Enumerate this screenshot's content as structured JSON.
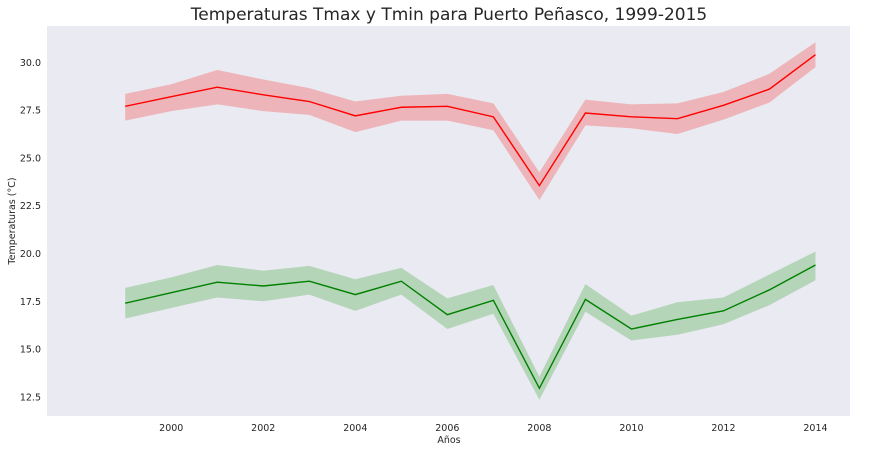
{
  "chart_data": {
    "type": "line",
    "title": "Temperaturas Tmax y Tmin para Puerto Peñasco, 1999-2015",
    "xlabel": "Años",
    "ylabel": "Temperaturas (°C)",
    "xlim": [
      1997.3,
      2014.75
    ],
    "ylim": [
      11.5,
      31.9
    ],
    "xticks": [
      2000,
      2002,
      2004,
      2006,
      2008,
      2010,
      2012,
      2014
    ],
    "yticks": [
      12.5,
      15.0,
      17.5,
      20.0,
      22.5,
      25.0,
      27.5,
      30.0
    ],
    "ytick_labels": [
      "12.5",
      "15.0",
      "17.5",
      "20.0",
      "22.5",
      "25.0",
      "27.5",
      "30.0"
    ],
    "grid": false,
    "background": "#eaeaf2",
    "x": [
      1999,
      2000,
      2001,
      2002,
      2003,
      2004,
      2005,
      2006,
      2007,
      2008,
      2009,
      2010,
      2011,
      2012,
      2013,
      2014
    ],
    "series": [
      {
        "color": "#ff0000",
        "band_color": "#f08080",
        "values": [
          27.7,
          28.2,
          28.7,
          28.3,
          27.95,
          27.2,
          27.65,
          27.7,
          27.15,
          23.55,
          27.35,
          27.15,
          27.05,
          27.75,
          28.6,
          30.4
        ],
        "lower": [
          26.95,
          27.45,
          27.8,
          27.45,
          27.25,
          26.35,
          26.95,
          26.95,
          26.45,
          22.8,
          26.7,
          26.55,
          26.25,
          27.0,
          27.9,
          29.75
        ],
        "upper": [
          28.35,
          28.85,
          29.6,
          29.1,
          28.65,
          27.95,
          28.25,
          28.35,
          27.85,
          24.25,
          28.05,
          27.8,
          27.85,
          28.45,
          29.4,
          31.05
        ]
      },
      {
        "color": "#008000",
        "band_color": "#7fbf7f",
        "values": [
          17.4,
          17.95,
          18.5,
          18.3,
          18.55,
          17.85,
          18.55,
          16.8,
          17.55,
          12.95,
          17.6,
          16.05,
          16.55,
          17.0,
          18.1,
          19.4
        ],
        "lower": [
          16.6,
          17.15,
          17.7,
          17.5,
          17.85,
          17.0,
          17.85,
          16.05,
          16.85,
          12.35,
          16.95,
          15.45,
          15.75,
          16.3,
          17.3,
          18.6
        ],
        "upper": [
          18.2,
          18.75,
          19.4,
          19.1,
          19.35,
          18.65,
          19.25,
          17.65,
          18.35,
          13.55,
          18.4,
          16.75,
          17.45,
          17.7,
          18.9,
          20.1
        ]
      }
    ]
  }
}
